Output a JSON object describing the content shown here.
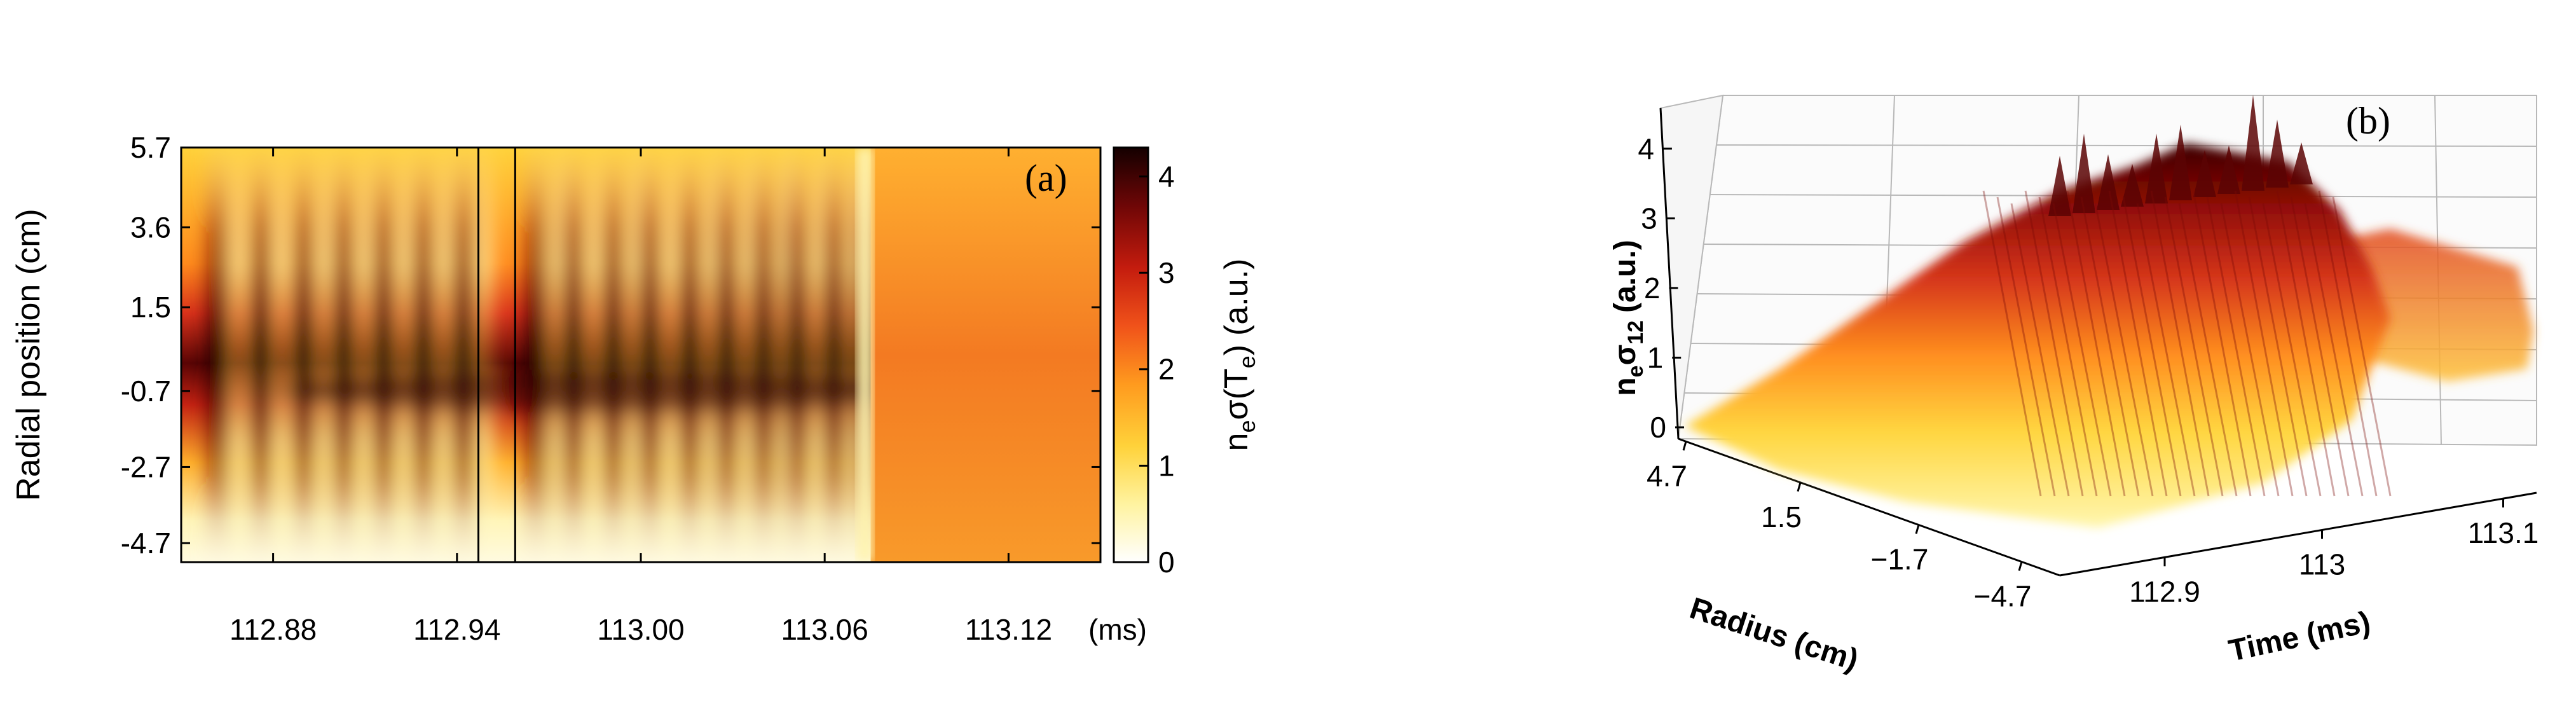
{
  "chart_data": [
    {
      "panel": "(a)",
      "type": "heatmap",
      "ylabel": "Radial position (cm)",
      "xunit": "(ms)",
      "x_ticks": [
        "112.88",
        "112.94",
        "113.00",
        "113.06",
        "113.12"
      ],
      "x_tick_values": [
        112.88,
        112.94,
        113.0,
        113.06,
        113.12
      ],
      "xlim": [
        112.85,
        113.15
      ],
      "y_ticks": [
        "5.7",
        "3.6",
        "1.5",
        "-0.7",
        "-2.7",
        "-4.7"
      ],
      "y_tick_values": [
        5.7,
        3.6,
        1.5,
        -0.7,
        -2.7,
        -4.7
      ],
      "ylim": [
        -5.2,
        5.7
      ],
      "vertical_markers_ms": [
        112.947,
        112.959
      ],
      "colorbar": {
        "label_main": "n",
        "label_sub_e": "e",
        "label_sigma": "σ(T",
        "label_close": ")",
        "label_units": "(a.u.)",
        "ticks": [
          "0",
          "1",
          "2",
          "3",
          "4"
        ],
        "tick_values": [
          0,
          1,
          2,
          3,
          4
        ],
        "range": [
          0,
          4.3
        ],
        "colormap": [
          "#ffffff",
          "#fff3a0",
          "#ffd23a",
          "#ff9a1e",
          "#f0521a",
          "#c41c0e",
          "#6e0606",
          "#140000"
        ]
      },
      "description_values": {
        "core_peak_near_radius_cm": -0.7,
        "oscillation_columns_ms": [
          112.862,
          112.876,
          112.89,
          112.903,
          112.916,
          112.929,
          112.942,
          112.966,
          112.978,
          112.991,
          113.003,
          113.016,
          113.028,
          113.04,
          113.051,
          113.063,
          113.074
        ],
        "crash_time_ms": 113.075,
        "post_crash_level": 2.3
      }
    },
    {
      "panel": "(b)",
      "type": "surface3d",
      "zlabel_main": "n",
      "zlabel_sub_e": "e",
      "zlabel_sigma": "σ",
      "zlabel_sub": "12",
      "zlabel_units": "(a.u.)",
      "z_ticks": [
        "0",
        "1",
        "2",
        "3",
        "4"
      ],
      "z_tick_values": [
        0,
        1,
        2,
        3,
        4
      ],
      "radius_label": "Radius (cm)",
      "radius_ticks": [
        "4.7",
        "1.5",
        "−1.7",
        "−4.7"
      ],
      "time_label": "Time (ms)",
      "time_ticks": [
        "112.9",
        "113",
        "113.1"
      ],
      "time_tick_values": [
        112.9,
        113.0,
        113.1
      ],
      "ridge_peak": 4.2
    }
  ]
}
